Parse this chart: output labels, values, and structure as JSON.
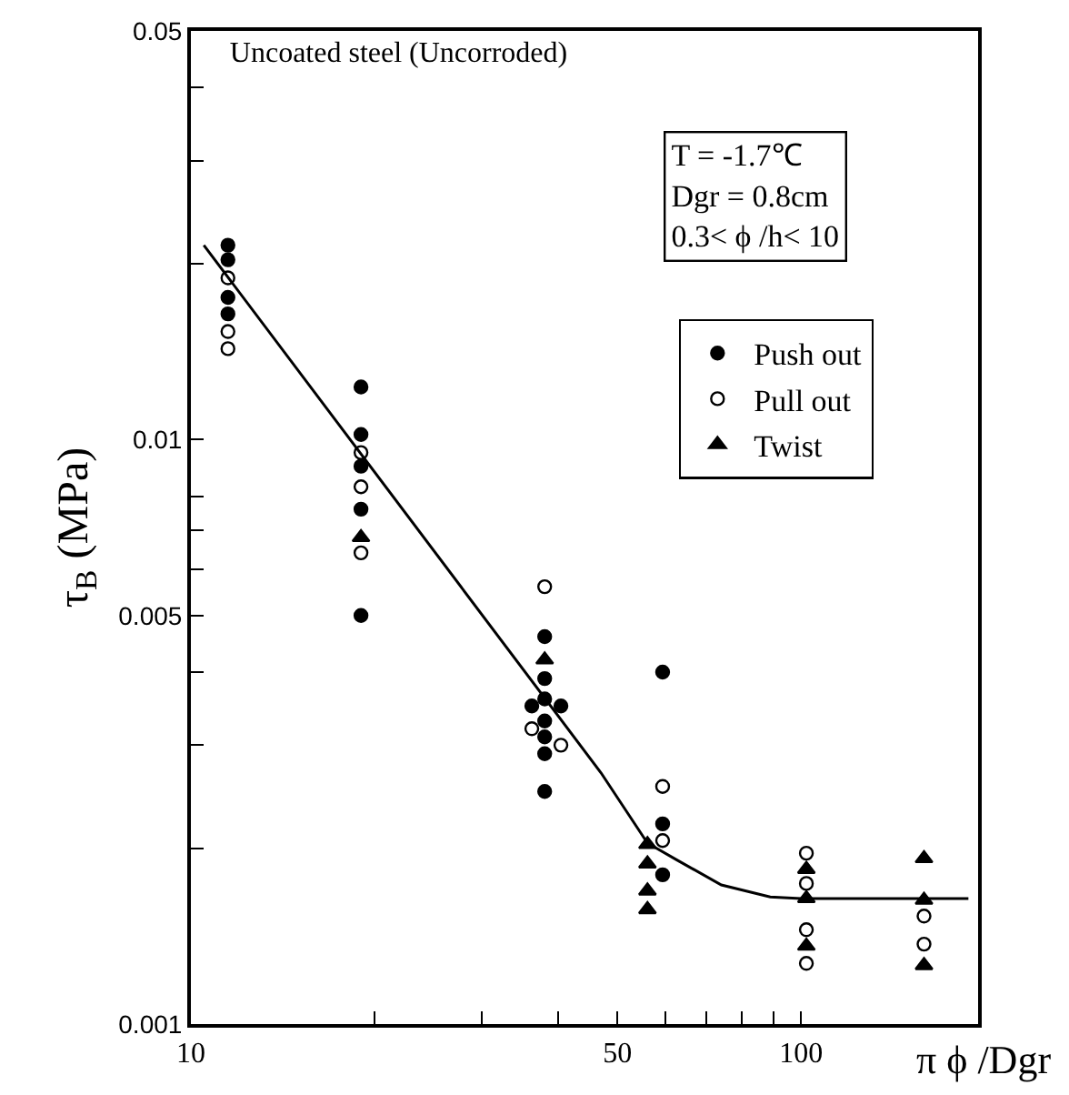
{
  "chart_data": {
    "type": "scatter",
    "title": "Uncoated steel (Uncorroded)",
    "xlabel": "π ϕ /Dgr",
    "ylabel": "τ$_{B}$ (MPa)",
    "annotations": [
      "T = -1.7℃\nDgr = 0.8cm\n0.3< ϕ /h< 10"
    ],
    "log": "xy",
    "grid": false,
    "legend": "right",
    "xlim": [
      10,
      195
    ],
    "xticks": [
      10,
      {
        "value": 20,
        "label": null
      },
      {
        "value": 30,
        "label": null
      },
      {
        "value": 40,
        "label": null
      },
      50,
      {
        "value": 60,
        "label": null
      },
      {
        "value": 70,
        "label": null
      },
      {
        "value": 80,
        "label": null
      },
      {
        "value": 90,
        "label": null
      },
      100
    ],
    "ylim": [
      0.001,
      0.05
    ],
    "yticks": [
      0.001,
      {
        "value": 0.002,
        "label": null
      },
      {
        "value": 0.003,
        "label": null
      },
      {
        "value": 0.004,
        "label": null
      },
      0.005,
      {
        "value": 0.006,
        "label": null
      },
      {
        "value": 0.007,
        "label": null
      },
      {
        "value": 0.008,
        "label": null
      },
      0.01,
      {
        "value": 0.02,
        "label": null
      },
      {
        "value": 0.03,
        "label": null
      },
      {
        "value": 0.04,
        "label": null
      },
      0.05
    ],
    "series": [
      {
        "name": "Push out",
        "color": "#000000",
        "marker": "circle",
        "x": [
          11.5,
          11.5,
          11.5,
          11.5,
          19,
          19,
          19,
          19,
          19,
          38,
          38,
          38,
          36.2,
          40.4,
          38,
          38,
          38,
          38,
          59.3,
          59.3,
          59.3
        ],
        "values": [
          0.0215,
          0.0203,
          0.0175,
          0.0164,
          0.0123,
          0.0102,
          0.009,
          0.0076,
          0.005,
          0.0046,
          0.0039,
          0.0036,
          0.0035,
          0.0035,
          0.0033,
          0.0031,
          0.0029,
          0.0025,
          0.004,
          0.0022,
          0.0018
        ]
      },
      {
        "name": "Pull out",
        "color": "#000000",
        "marker": "circle-open",
        "x": [
          11.5,
          11.5,
          11.5,
          19,
          19,
          19,
          38,
          36.2,
          40.4,
          59.3,
          59.3,
          102,
          102,
          102,
          102,
          159,
          159
        ],
        "values": [
          0.0189,
          0.0153,
          0.0143,
          0.0095,
          0.0083,
          0.0064,
          0.0056,
          0.0032,
          0.003,
          0.00255,
          0.00206,
          0.00196,
          0.00174,
          0.00145,
          0.00127,
          0.00153,
          0.00137
        ]
      },
      {
        "name": "Twist",
        "color": "#000000",
        "marker": "triangle",
        "x": [
          19,
          38,
          56,
          56,
          56,
          56,
          102,
          102,
          102,
          159,
          159,
          159
        ],
        "values": [
          0.0068,
          0.0042,
          0.00203,
          0.00188,
          0.00169,
          0.00157,
          0.00184,
          0.00164,
          0.00136,
          0.00192,
          0.00163,
          0.00126
        ]
      },
      {
        "type": "line",
        "color": "#000000",
        "marker": "none",
        "line_style": "solid",
        "x": [
          10.5,
          47,
          56,
          62.5,
          74,
          89,
          100,
          188
        ],
        "values": [
          0.0215,
          0.00269,
          0.00204,
          0.00191,
          0.00173,
          0.00165,
          0.00164,
          0.00164
        ]
      }
    ]
  }
}
